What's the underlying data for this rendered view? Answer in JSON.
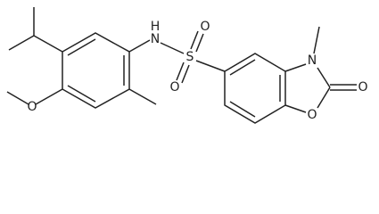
{
  "atoms": [
    "N",
    "H",
    "S",
    "O",
    "O",
    "O",
    "N",
    "O",
    "O"
  ]
}
